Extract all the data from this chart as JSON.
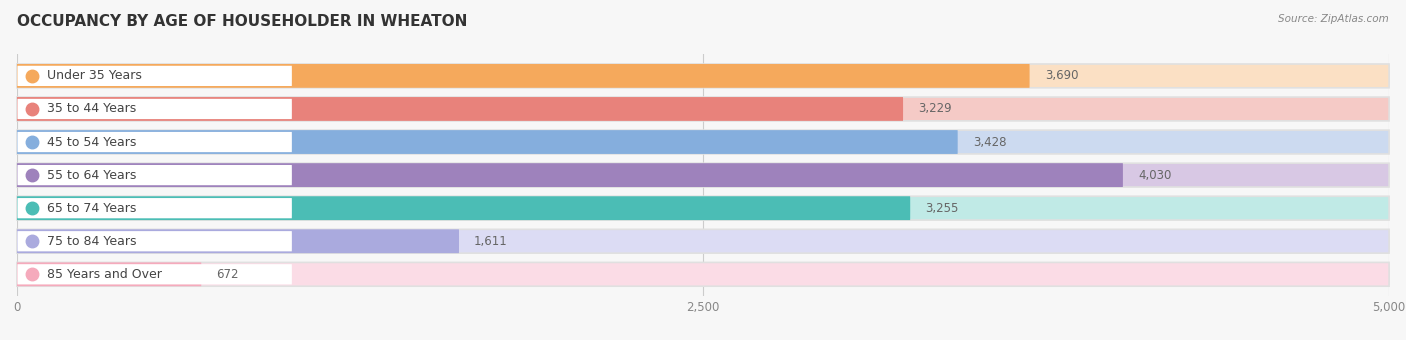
{
  "title": "OCCUPANCY BY AGE OF HOUSEHOLDER IN WHEATON",
  "source": "Source: ZipAtlas.com",
  "categories": [
    "Under 35 Years",
    "35 to 44 Years",
    "45 to 54 Years",
    "55 to 64 Years",
    "65 to 74 Years",
    "75 to 84 Years",
    "85 Years and Over"
  ],
  "values": [
    3690,
    3229,
    3428,
    4030,
    3255,
    1611,
    672
  ],
  "bar_colors": [
    "#F5A95C",
    "#E8827B",
    "#85AEDD",
    "#9E82BC",
    "#4BBDB5",
    "#AAAADE",
    "#F5AABC"
  ],
  "bar_bg_colors": [
    "#FBE0C4",
    "#F5CAC6",
    "#CCDAF0",
    "#D8C8E4",
    "#C0EAE6",
    "#DCDCF4",
    "#FBDCE6"
  ],
  "dot_colors": [
    "#F5A95C",
    "#E8827B",
    "#85AEDD",
    "#9E82BC",
    "#4BBDB5",
    "#AAAADE",
    "#F5AABC"
  ],
  "xlim_min": 0,
  "xlim_max": 5000,
  "xticks": [
    0,
    2500,
    5000
  ],
  "background_color": "#f7f7f7",
  "bar_bg_outer": "#e8e8e8",
  "title_fontsize": 11,
  "label_fontsize": 9,
  "value_fontsize": 8.5
}
